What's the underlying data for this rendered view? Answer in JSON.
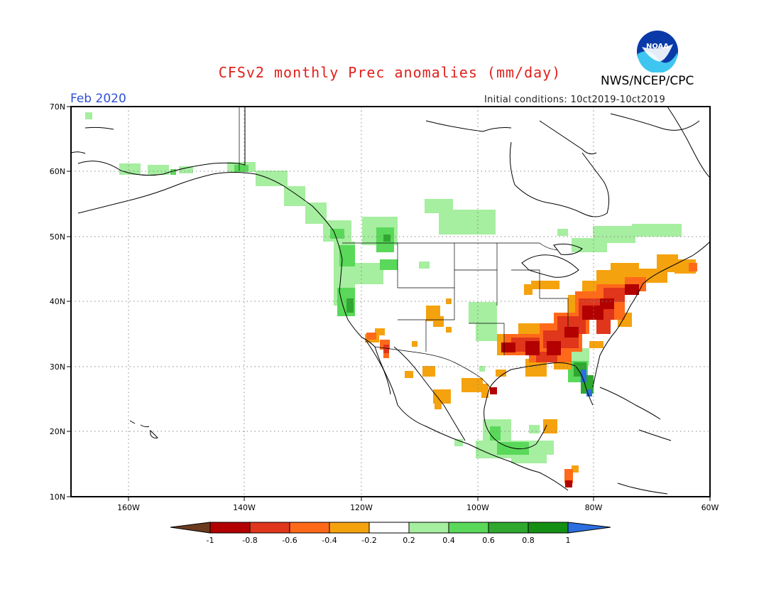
{
  "header": {
    "title": "CFSv2 monthly Prec anomalies (mm/day)",
    "agency": "NWS/NCEP/CPC",
    "period": "Feb 2020",
    "initial_conditions": "Initial conditions: 10ct2019-10ct2019",
    "logo_text": "NOAA"
  },
  "axes": {
    "lat_ticks": [
      "70N",
      "60N",
      "50N",
      "40N",
      "30N",
      "20N",
      "10N"
    ],
    "lon_ticks": [
      "160W",
      "140W",
      "120W",
      "100W",
      "80W",
      "60W"
    ]
  },
  "colorbar": {
    "labels": [
      "-1",
      "-0.8",
      "-0.6",
      "-0.4",
      "-0.2",
      "0.2",
      "0.4",
      "0.6",
      "0.8",
      "1"
    ],
    "colors": [
      "#6b3a1f",
      "#b30000",
      "#e0361b",
      "#ff6a1a",
      "#f5a20f",
      "#ffffff",
      "#a6eea0",
      "#5ad85a",
      "#2ea82e",
      "#138f13",
      "#2b6fe0"
    ]
  }
}
